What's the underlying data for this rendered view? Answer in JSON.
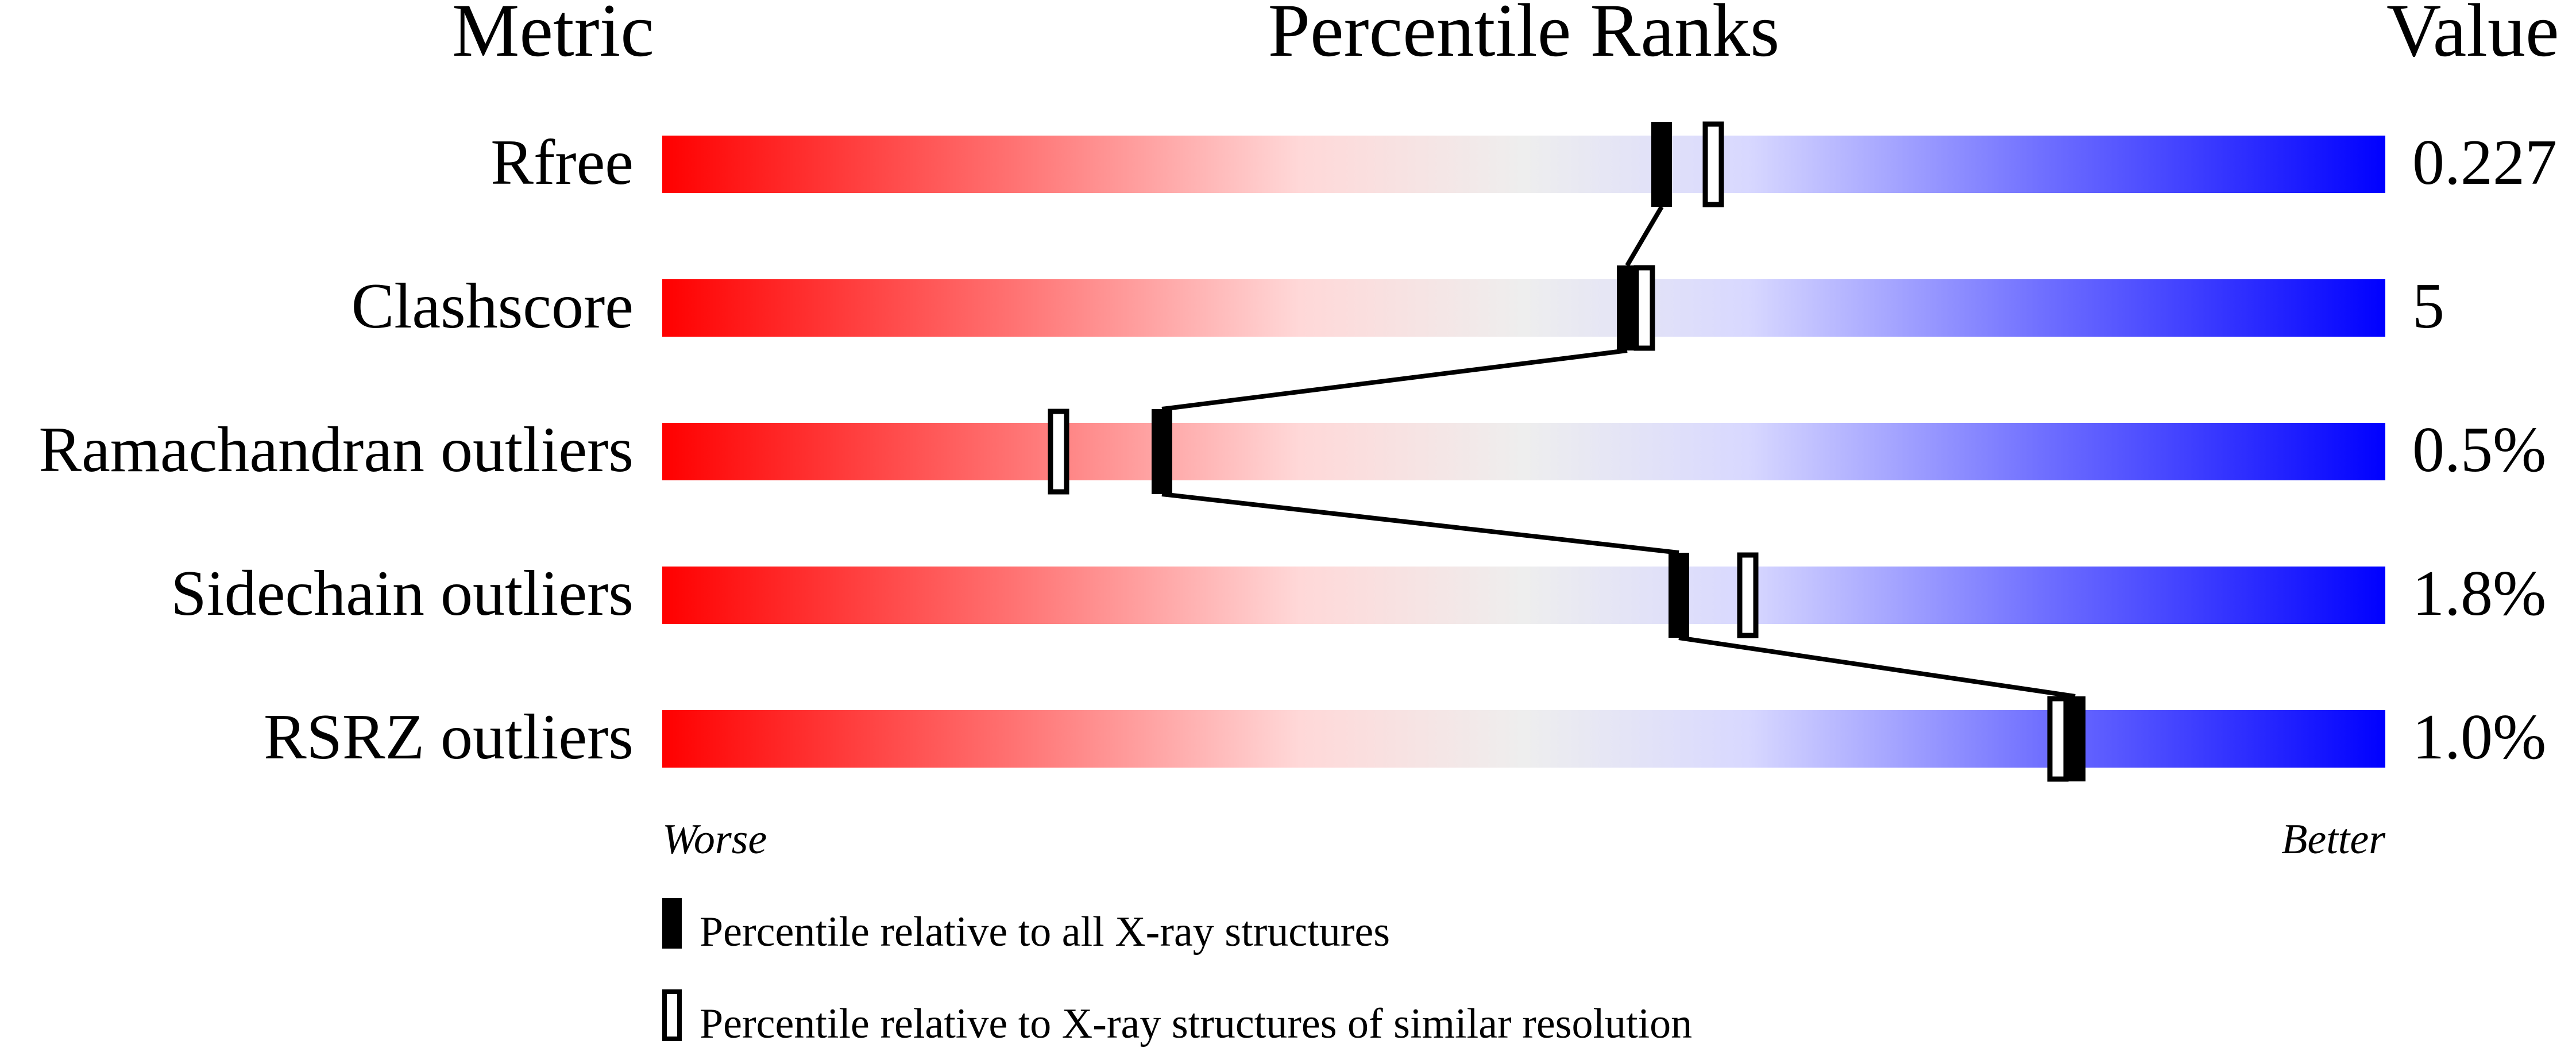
{
  "chart_data": {
    "type": "percentile-ranks",
    "headers": {
      "metric": "Metric",
      "ranks": "Percentile Ranks",
      "value": "Value"
    },
    "xlim": [
      0,
      100
    ],
    "axis_ends": {
      "left": "Worse",
      "right": "Better"
    },
    "gradient_colors": [
      "#ff0000",
      "#ff7070",
      "#ffd8d8",
      "#eeeeee",
      "#d8d8ff",
      "#7070ff",
      "#0000ff"
    ],
    "metrics": [
      {
        "name": "Rfree",
        "value": "0.227",
        "percentile_all": 58,
        "percentile_similar": 61
      },
      {
        "name": "Clashscore",
        "value": "5",
        "percentile_all": 56,
        "percentile_similar": 57
      },
      {
        "name": "Ramachandran outliers",
        "value": "0.5%",
        "percentile_all": 29,
        "percentile_similar": 23
      },
      {
        "name": "Sidechain outliers",
        "value": "1.8%",
        "percentile_all": 59,
        "percentile_similar": 63
      },
      {
        "name": "RSRZ outliers",
        "value": "1.0%",
        "percentile_all": 82,
        "percentile_similar": 81
      }
    ],
    "legend": [
      {
        "marker": "filled",
        "label": "Percentile relative to all X-ray structures"
      },
      {
        "marker": "open",
        "label": "Percentile relative to X-ray structures of similar resolution"
      }
    ]
  }
}
